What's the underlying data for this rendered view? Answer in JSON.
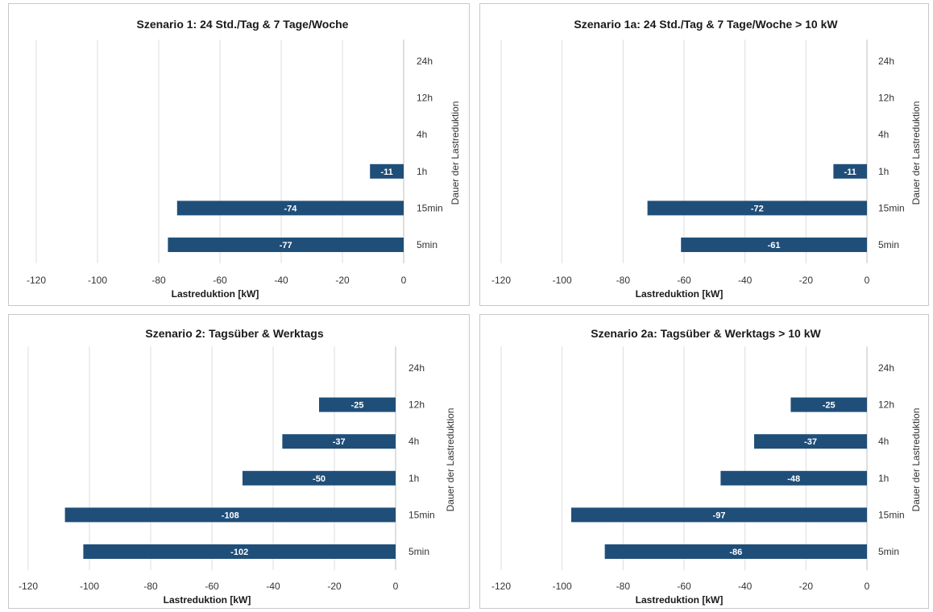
{
  "colors": {
    "bar": "#1f4e79",
    "grid": "#dcdcdc",
    "text": "#333333"
  },
  "chart_data": [
    {
      "type": "bar",
      "orientation": "horizontal",
      "title": "Szenario 1: 24 Std./Tag & 7 Tage/Woche",
      "xlabel": "Lastreduktion [kW]",
      "ylabel": "Dauer der Lastreduktion",
      "xlim": [
        -120,
        0
      ],
      "xticks": [
        "-120",
        "-100",
        "-80",
        "-60",
        "-40",
        "-20",
        "0"
      ],
      "categories": [
        "24h",
        "12h",
        "4h",
        "1h",
        "15min",
        "5min"
      ],
      "values": [
        null,
        null,
        null,
        -11,
        -74,
        -77
      ],
      "data_labels": [
        "",
        "",
        "",
        "-11",
        "-74",
        "-77"
      ],
      "grid": true
    },
    {
      "type": "bar",
      "orientation": "horizontal",
      "title": "Szenario 1a: 24 Std./Tag & 7 Tage/Woche > 10 kW",
      "xlabel": "Lastreduktion [kW]",
      "ylabel": "Dauer der Lastreduktion",
      "xlim": [
        -120,
        0
      ],
      "xticks": [
        "-120",
        "-100",
        "-80",
        "-60",
        "-40",
        "-20",
        "0"
      ],
      "categories": [
        "24h",
        "12h",
        "4h",
        "1h",
        "15min",
        "5min"
      ],
      "values": [
        null,
        null,
        null,
        -11,
        -72,
        -61
      ],
      "data_labels": [
        "",
        "",
        "",
        "-11",
        "-72",
        "-61"
      ],
      "grid": true
    },
    {
      "type": "bar",
      "orientation": "horizontal",
      "title": "Szenario 2: Tagsüber & Werktags",
      "xlabel": "Lastreduktion [kW]",
      "ylabel": "Dauer der Lastreduktion",
      "xlim": [
        -120,
        0
      ],
      "xticks": [
        "-120",
        "-100",
        "-80",
        "-60",
        "-40",
        "-20",
        "0"
      ],
      "categories": [
        "24h",
        "12h",
        "4h",
        "1h",
        "15min",
        "5min"
      ],
      "values": [
        null,
        -25,
        -37,
        -50,
        -108,
        -102
      ],
      "data_labels": [
        "",
        "-25",
        "-37",
        "-50",
        "-108",
        "-102"
      ],
      "grid": true
    },
    {
      "type": "bar",
      "orientation": "horizontal",
      "title": "Szenario 2a: Tagsüber & Werktags > 10 kW",
      "xlabel": "Lastreduktion [kW]",
      "ylabel": "Dauer der Lastreduktion",
      "xlim": [
        -120,
        0
      ],
      "xticks": [
        "-120",
        "-100",
        "-80",
        "-60",
        "-40",
        "-20",
        "0"
      ],
      "categories": [
        "24h",
        "12h",
        "4h",
        "1h",
        "15min",
        "5min"
      ],
      "values": [
        null,
        -25,
        -37,
        -48,
        -97,
        -86
      ],
      "data_labels": [
        "",
        "-25",
        "-37",
        "-48",
        "-97",
        "-86"
      ],
      "grid": true
    }
  ]
}
